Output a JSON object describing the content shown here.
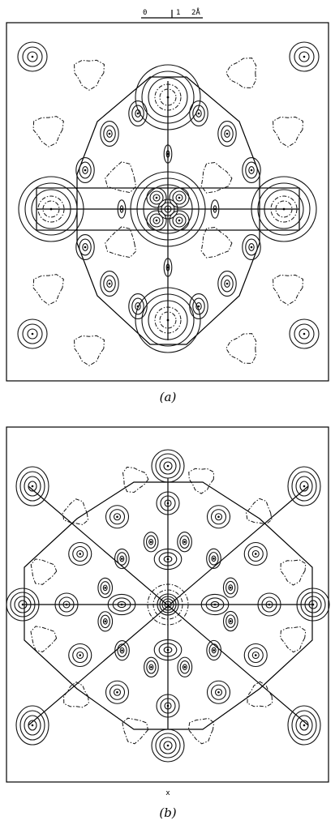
{
  "scale_bar": {
    "labels": [
      "0",
      "1",
      "2Å"
    ]
  },
  "panels": [
    {
      "label": "(a)"
    },
    {
      "label": "(b)",
      "axis_label": "x"
    }
  ]
}
